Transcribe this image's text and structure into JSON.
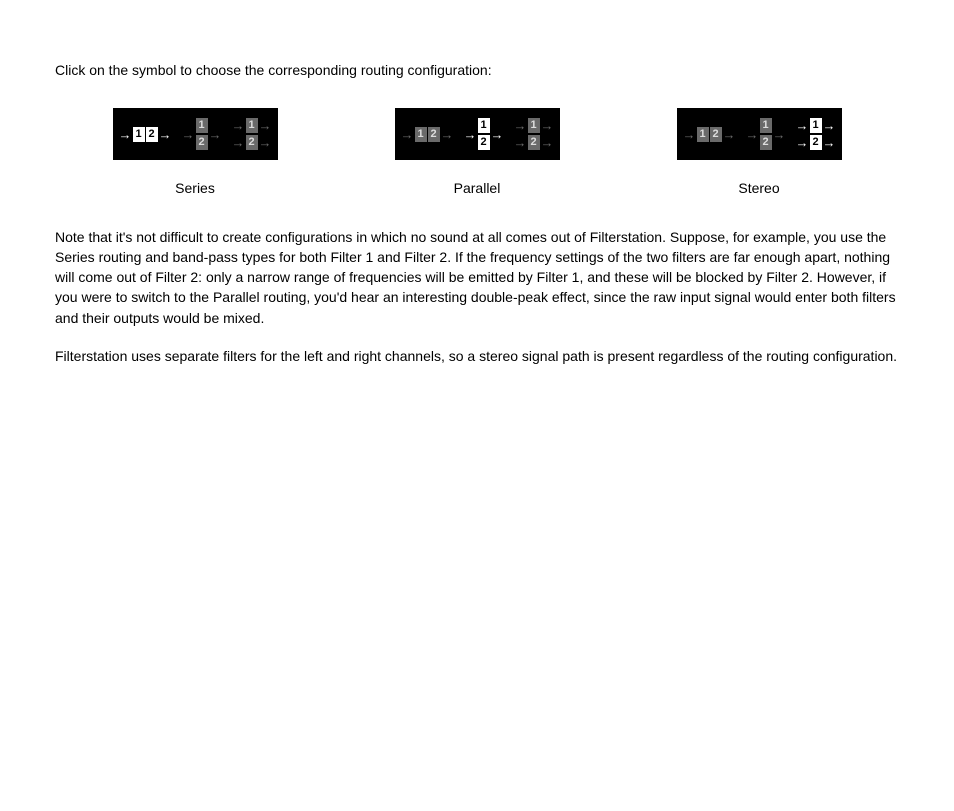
{
  "intro": "Click on the symbol to choose the corresponding routing configuration:",
  "options": [
    {
      "label": "Series",
      "active": "series"
    },
    {
      "label": "Parallel",
      "active": "parallel"
    },
    {
      "label": "Stereo",
      "active": "stereo"
    }
  ],
  "paragraph1": "Note that it's not difficult to create configurations in which no sound at all comes out of Filterstation. Suppose, for example, you use the Series routing and band-pass types for both Filter 1 and Filter 2. If the frequency settings of the two filters are far enough apart, nothing will come out of Filter 2: only a narrow range of frequencies will be emitted by Filter 1, and these will be blocked by Filter 2. However, if you were to switch to the Parallel routing, you'd hear an interesting double-peak effect, since the raw input signal would enter both filters and their outputs would be mixed.",
  "paragraph2": "Filterstation uses separate filters for the left and right channels, so a stereo signal path is present regardless of the routing configuration.",
  "glyphs": {
    "arrow": "→",
    "one": "1",
    "two": "2"
  }
}
